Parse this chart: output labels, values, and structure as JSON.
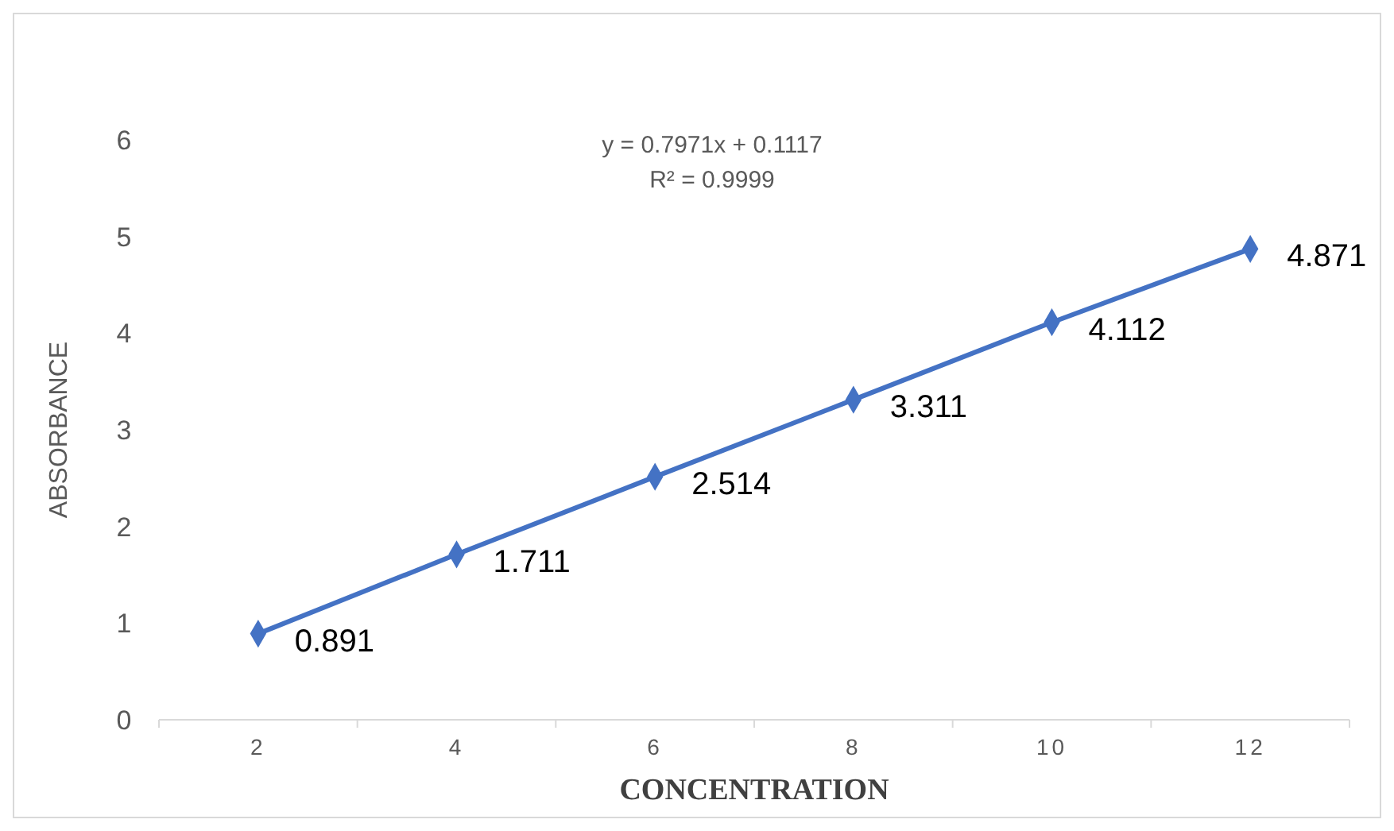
{
  "chart_data": {
    "type": "line",
    "xlabel": "CONCENTRATION",
    "ylabel": "ABSORBANCE",
    "categories": [
      "2",
      "4",
      "6",
      "8",
      "10",
      "12"
    ],
    "series": [
      {
        "color": "#4472c4",
        "values": [
          0.891,
          1.711,
          2.514,
          3.311,
          4.112,
          4.871
        ]
      }
    ],
    "ylim": [
      0,
      6
    ],
    "yticks": [
      0,
      1,
      2,
      3,
      4,
      5,
      6
    ],
    "grid": false,
    "marker": "diamond",
    "line_style": "solid",
    "data_labels": true,
    "annotations": [
      "y = 0.7971x + 0.1117",
      "R² = 0.9999"
    ]
  }
}
